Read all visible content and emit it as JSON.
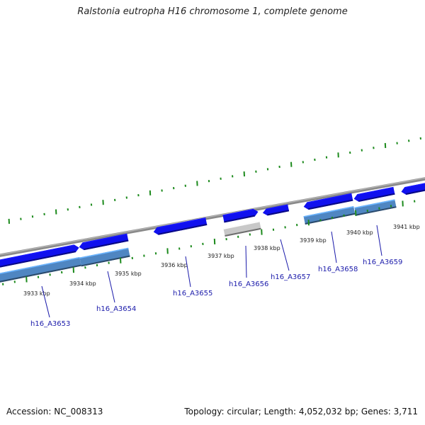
{
  "title": "Ralstonia eutropha H16 chromosome 1, complete genome",
  "footer": {
    "accession": "Accession: NC_008313",
    "topology": "Topology: circular; Length: 4,052,032 bp; Genes: 3,711"
  },
  "colors": {
    "backbone": "#8a8a8a",
    "forward_gene": "#1010ee",
    "reverse_gene": "#4f86c2",
    "pseudo_gene": "#c8c8c8",
    "tick": "#1c8a1c",
    "label": "#1a1aaa"
  },
  "kbp_labels": [
    "3933 kbp",
    "3934 kbp",
    "3935 kbp",
    "3936 kbp",
    "3937 kbp",
    "3938 kbp",
    "3939 kbp",
    "3940 kbp",
    "3941 kbp"
  ],
  "gene_labels": [
    "h16_A3653",
    "h16_A3654",
    "h16_A3655",
    "h16_A3656",
    "h16_A3657",
    "h16_A3658",
    "h16_A3659"
  ]
}
